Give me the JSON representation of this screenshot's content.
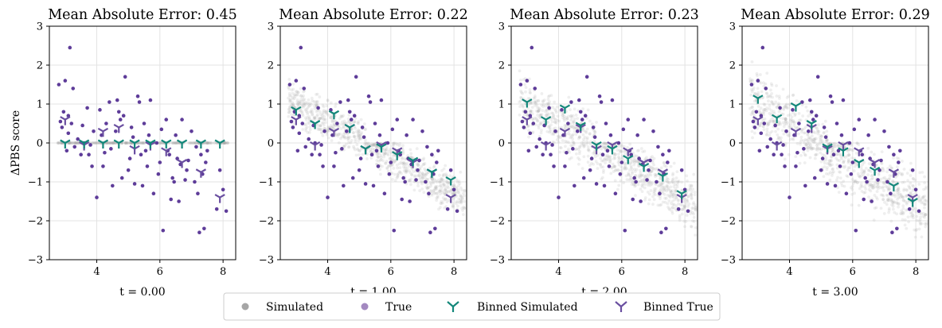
{
  "legend": {
    "entries": [
      {
        "label": "Simulated",
        "marker": "dot",
        "color": "#a6a6a6"
      },
      {
        "label": "True",
        "marker": "dot",
        "color": "#a389c0"
      },
      {
        "label": "Binned Simulated",
        "marker": "tri",
        "color": "#13877a"
      },
      {
        "label": "Binned True",
        "marker": "tri",
        "color": "#6a4fa0"
      }
    ]
  },
  "colors": {
    "simulated": "#a6a6a6",
    "true": "#5e3c99",
    "binned_simulated": "#13877a",
    "binned_true": "#6a4fa0"
  },
  "chart_data": [
    {
      "type": "scatter",
      "title": "Mean Absolute Error: 0.45",
      "xlabel": "t = 0.00",
      "ylabel": "ΔPBS score",
      "xlim": [
        2.5,
        8.4
      ],
      "ylim": [
        -3,
        3
      ],
      "xticks": [
        4,
        6,
        8
      ],
      "yticks": [
        -3,
        -2,
        -1,
        0,
        1,
        2,
        3
      ],
      "grid": true,
      "binned_x": [
        3.0,
        3.6,
        4.2,
        4.7,
        5.2,
        5.7,
        6.2,
        6.7,
        7.3,
        7.9
      ],
      "binned_simulated": [
        0,
        0,
        0,
        0,
        0,
        0,
        0,
        0,
        0,
        0
      ],
      "binned_true": [
        0.6,
        -0.05,
        0.3,
        0.4,
        -0.15,
        -0.05,
        -0.2,
        -0.5,
        -0.75,
        -1.4
      ]
    },
    {
      "type": "scatter",
      "title": "Mean Absolute Error: 0.22",
      "xlabel": "t = 1.00",
      "ylabel": "",
      "xlim": [
        2.5,
        8.4
      ],
      "ylim": [
        -3,
        3
      ],
      "xticks": [
        4,
        6,
        8
      ],
      "yticks": [
        -3,
        -2,
        -1,
        0,
        1,
        2,
        3
      ],
      "grid": true,
      "binned_x": [
        3.0,
        3.6,
        4.2,
        4.7,
        5.2,
        5.7,
        6.2,
        6.7,
        7.3,
        7.9
      ],
      "binned_simulated": [
        0.85,
        0.5,
        0.75,
        0.4,
        -0.15,
        -0.1,
        -0.3,
        -0.45,
        -0.75,
        -0.95
      ],
      "binned_true": [
        0.6,
        -0.05,
        0.3,
        0.4,
        -0.15,
        -0.05,
        -0.2,
        -0.5,
        -0.75,
        -1.4
      ]
    },
    {
      "type": "scatter",
      "title": "Mean Absolute Error: 0.23",
      "xlabel": "t = 2.00",
      "ylabel": "",
      "xlim": [
        2.5,
        8.4
      ],
      "ylim": [
        -3,
        3
      ],
      "xticks": [
        4,
        6,
        8
      ],
      "yticks": [
        -3,
        -2,
        -1,
        0,
        1,
        2,
        3
      ],
      "grid": true,
      "binned_x": [
        3.0,
        3.6,
        4.2,
        4.7,
        5.2,
        5.7,
        6.2,
        6.7,
        7.3,
        7.9
      ],
      "binned_simulated": [
        1.05,
        0.6,
        0.9,
        0.45,
        -0.05,
        -0.15,
        -0.4,
        -0.6,
        -0.85,
        -1.3
      ],
      "binned_true": [
        0.6,
        -0.05,
        0.3,
        0.4,
        -0.15,
        -0.05,
        -0.2,
        -0.5,
        -0.75,
        -1.4
      ]
    },
    {
      "type": "scatter",
      "title": "Mean Absolute Error: 0.29",
      "xlabel": "t = 3.00",
      "ylabel": "",
      "xlim": [
        2.5,
        8.4
      ],
      "ylim": [
        -3,
        3
      ],
      "xticks": [
        4,
        6,
        8
      ],
      "yticks": [
        -3,
        -2,
        -1,
        0,
        1,
        2,
        3
      ],
      "grid": true,
      "binned_x": [
        3.0,
        3.6,
        4.2,
        4.7,
        5.2,
        5.7,
        6.2,
        6.7,
        7.3,
        7.9
      ],
      "binned_simulated": [
        1.15,
        0.65,
        0.95,
        0.5,
        -0.1,
        -0.2,
        -0.5,
        -0.7,
        -1.1,
        -1.5
      ],
      "binned_true": [
        0.6,
        -0.05,
        0.3,
        0.4,
        -0.15,
        -0.05,
        -0.2,
        -0.5,
        -0.75,
        -1.4
      ]
    }
  ],
  "true_points": {
    "x": [
      2.8,
      2.9,
      3.0,
      3.1,
      3.2,
      3.05,
      2.95,
      3.15,
      3.3,
      3.4,
      3.5,
      3.6,
      3.7,
      3.8,
      3.9,
      4.0,
      4.1,
      4.2,
      4.3,
      4.4,
      4.5,
      4.6,
      4.7,
      4.8,
      4.9,
      5.0,
      5.1,
      5.2,
      5.3,
      5.4,
      5.5,
      5.6,
      5.7,
      5.8,
      5.9,
      6.0,
      6.1,
      6.2,
      6.3,
      6.4,
      6.5,
      6.6,
      6.7,
      6.8,
      6.9,
      7.0,
      7.1,
      7.2,
      7.3,
      7.4,
      7.5,
      7.8,
      7.9,
      8.0,
      8.1,
      3.25,
      3.55,
      3.85,
      4.15,
      4.45,
      4.75,
      5.05,
      5.35,
      5.65,
      5.95,
      6.25,
      6.55,
      6.85,
      7.15,
      7.45,
      3.1,
      4.25,
      4.85,
      5.45,
      6.05,
      6.65,
      7.25,
      2.85,
      3.75,
      4.65,
      5.55,
      6.45,
      7.35,
      5.15,
      6.35
    ],
    "y": [
      1.5,
      0.4,
      1.6,
      0.7,
      0.5,
      -0.2,
      0.8,
      2.45,
      -0.1,
      0.1,
      -0.3,
      0.0,
      0.9,
      -0.05,
      0.3,
      -1.4,
      0.85,
      -0.6,
      0.5,
      1.05,
      -1.1,
      0.3,
      0.8,
      -0.9,
      1.7,
      -0.7,
      0.4,
      -1.05,
      1.2,
      -0.3,
      0.5,
      -0.6,
      1.1,
      -1.3,
      0.0,
      -0.5,
      -2.25,
      0.6,
      -0.3,
      -0.9,
      0.2,
      -1.5,
      0.6,
      -0.95,
      -0.45,
      0.3,
      -1.0,
      -1.3,
      -0.3,
      -2.2,
      -0.2,
      -1.7,
      -0.7,
      -1.2,
      -1.75,
      1.4,
      0.45,
      -0.6,
      0.2,
      -0.15,
      0.6,
      -0.4,
      1.05,
      0.2,
      -0.8,
      -0.2,
      -0.4,
      -0.7,
      -0.1,
      -0.5,
      0.25,
      -0.25,
      0.7,
      -1.1,
      0.35,
      -0.55,
      -2.3,
      0.55,
      -0.3,
      1.1,
      -0.2,
      -1.0,
      -0.8,
      0.15,
      -1.45
    ]
  }
}
